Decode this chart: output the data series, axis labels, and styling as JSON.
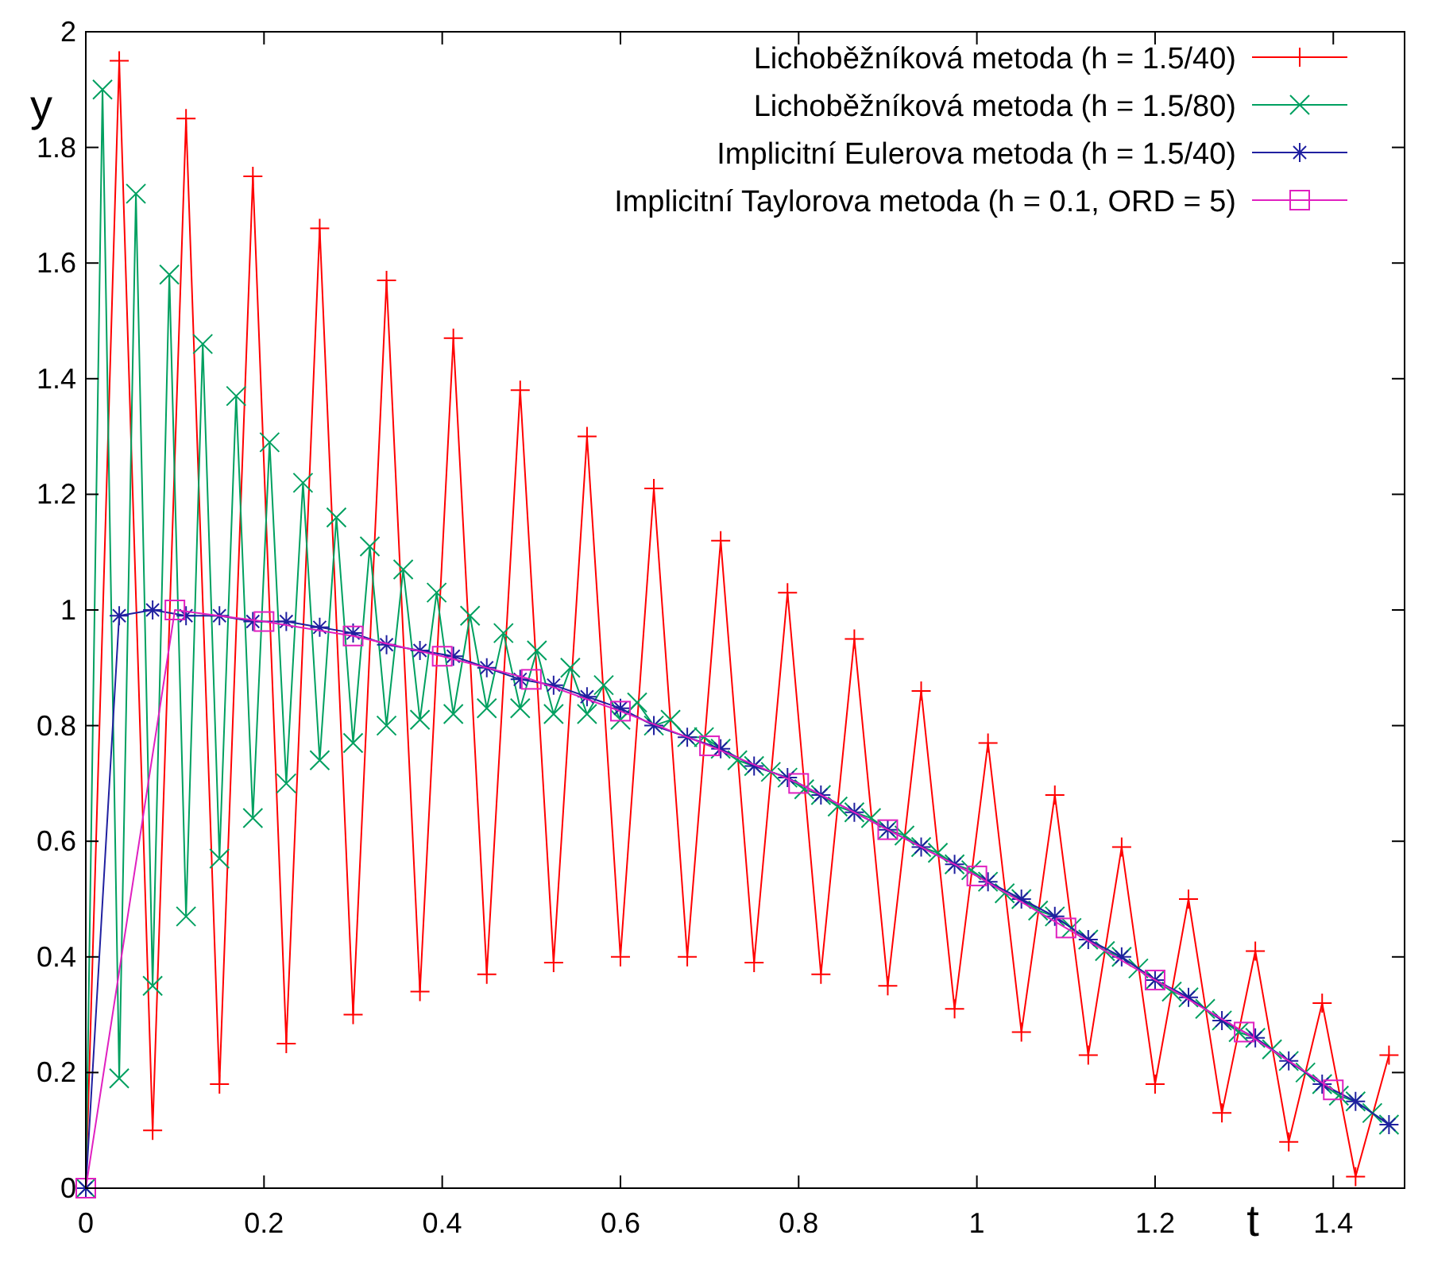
{
  "chart_data": {
    "type": "line",
    "xlabel": "t",
    "ylabel": "y",
    "xlim": [
      0,
      1.48
    ],
    "ylim": [
      0,
      2
    ],
    "xticks": [
      0,
      0.2,
      0.4,
      0.6,
      0.8,
      1,
      1.2,
      1.4
    ],
    "yticks": [
      0,
      0.2,
      0.4,
      0.6,
      0.8,
      1,
      1.2,
      1.4,
      1.6,
      1.8,
      2
    ],
    "grid": false,
    "legend": "top right",
    "line_style": "solid",
    "series": [
      {
        "name": "Lichoběžníková metoda (h = 1.5/40)",
        "color": "#ff0000",
        "marker": "plus",
        "x": [
          0,
          0.0375,
          0.075,
          0.1125,
          0.15,
          0.1875,
          0.225,
          0.2625,
          0.3,
          0.3375,
          0.375,
          0.4125,
          0.45,
          0.4875,
          0.525,
          0.5625,
          0.6,
          0.6375,
          0.675,
          0.7125,
          0.75,
          0.7875,
          0.825,
          0.8625,
          0.9,
          0.9375,
          0.975,
          1.0125,
          1.05,
          1.0875,
          1.125,
          1.1625,
          1.2,
          1.2375,
          1.275,
          1.3125,
          1.35,
          1.3875,
          1.425,
          1.4625
        ],
        "values": [
          0,
          1.95,
          0.1,
          1.85,
          0.18,
          1.75,
          0.25,
          1.66,
          0.3,
          1.57,
          0.34,
          1.47,
          0.37,
          1.38,
          0.39,
          1.3,
          0.4,
          1.21,
          0.4,
          1.12,
          0.39,
          1.03,
          0.37,
          0.95,
          0.35,
          0.86,
          0.31,
          0.77,
          0.27,
          0.68,
          0.23,
          0.59,
          0.18,
          0.5,
          0.13,
          0.41,
          0.08,
          0.32,
          0.02,
          0.23
        ]
      },
      {
        "name": "Lichoběžníková metoda (h = 1.5/80)",
        "color": "#00a060",
        "marker": "x",
        "x": [
          0,
          0.01875,
          0.0375,
          0.05625,
          0.075,
          0.09375,
          0.1125,
          0.13125,
          0.15,
          0.16875,
          0.1875,
          0.20625,
          0.225,
          0.24375,
          0.2625,
          0.28125,
          0.3,
          0.31875,
          0.3375,
          0.35625,
          0.375,
          0.39375,
          0.4125,
          0.43125,
          0.45,
          0.46875,
          0.4875,
          0.50625,
          0.525,
          0.54375,
          0.5625,
          0.58125,
          0.6,
          0.61875,
          0.6375,
          0.65625,
          0.675,
          0.69375,
          0.7125,
          0.73125,
          0.75,
          0.76875,
          0.7875,
          0.80625,
          0.825,
          0.84375,
          0.8625,
          0.88125,
          0.9,
          0.91875,
          0.9375,
          0.95625,
          0.975,
          0.99375,
          1.0125,
          1.03125,
          1.05,
          1.06875,
          1.0875,
          1.10625,
          1.125,
          1.14375,
          1.1625,
          1.18125,
          1.2,
          1.21875,
          1.2375,
          1.25625,
          1.275,
          1.29375,
          1.3125,
          1.33125,
          1.35,
          1.36875,
          1.3875,
          1.40625,
          1.425,
          1.44375,
          1.4625
        ],
        "values": [
          0,
          1.9,
          0.19,
          1.72,
          0.35,
          1.58,
          0.47,
          1.46,
          0.57,
          1.37,
          0.64,
          1.29,
          0.7,
          1.22,
          0.74,
          1.16,
          0.77,
          1.11,
          0.8,
          1.07,
          0.81,
          1.03,
          0.82,
          0.99,
          0.83,
          0.96,
          0.83,
          0.93,
          0.82,
          0.9,
          0.82,
          0.87,
          0.81,
          0.84,
          0.8,
          0.81,
          0.78,
          0.78,
          0.76,
          0.74,
          0.73,
          0.72,
          0.71,
          0.69,
          0.68,
          0.66,
          0.65,
          0.64,
          0.62,
          0.61,
          0.59,
          0.58,
          0.56,
          0.55,
          0.53,
          0.51,
          0.5,
          0.48,
          0.47,
          0.45,
          0.43,
          0.41,
          0.4,
          0.38,
          0.36,
          0.34,
          0.33,
          0.31,
          0.29,
          0.27,
          0.26,
          0.24,
          0.22,
          0.2,
          0.18,
          0.16,
          0.15,
          0.13,
          0.11
        ]
      },
      {
        "name": "Implicitní Eulerova metoda (h = 1.5/40)",
        "color": "#2020a0",
        "marker": "cross",
        "x": [
          0,
          0.0375,
          0.075,
          0.1125,
          0.15,
          0.1875,
          0.225,
          0.2625,
          0.3,
          0.3375,
          0.375,
          0.4125,
          0.45,
          0.4875,
          0.525,
          0.5625,
          0.6,
          0.6375,
          0.675,
          0.7125,
          0.75,
          0.7875,
          0.825,
          0.8625,
          0.9,
          0.9375,
          0.975,
          1.0125,
          1.05,
          1.0875,
          1.125,
          1.1625,
          1.2,
          1.2375,
          1.275,
          1.3125,
          1.35,
          1.3875,
          1.425,
          1.4625
        ],
        "values": [
          0,
          0.99,
          1,
          0.99,
          0.99,
          0.98,
          0.98,
          0.97,
          0.96,
          0.94,
          0.93,
          0.92,
          0.9,
          0.88,
          0.87,
          0.85,
          0.83,
          0.8,
          0.78,
          0.76,
          0.73,
          0.71,
          0.68,
          0.65,
          0.62,
          0.59,
          0.56,
          0.53,
          0.5,
          0.47,
          0.43,
          0.4,
          0.36,
          0.33,
          0.29,
          0.26,
          0.22,
          0.18,
          0.15,
          0.11
        ]
      },
      {
        "name": "Implicitní Taylorova metoda (h = 0.1, ORD = 5)",
        "color": "#e020c0",
        "marker": "square",
        "x": [
          0,
          0.1,
          0.2,
          0.3,
          0.4,
          0.5,
          0.6,
          0.7,
          0.8,
          0.9,
          1,
          1.1,
          1.2,
          1.3,
          1.4
        ],
        "values": [
          0,
          1,
          0.98,
          0.955,
          0.92,
          0.88,
          0.825,
          0.765,
          0.7,
          0.62,
          0.54,
          0.45,
          0.36,
          0.27,
          0.17
        ]
      }
    ]
  }
}
